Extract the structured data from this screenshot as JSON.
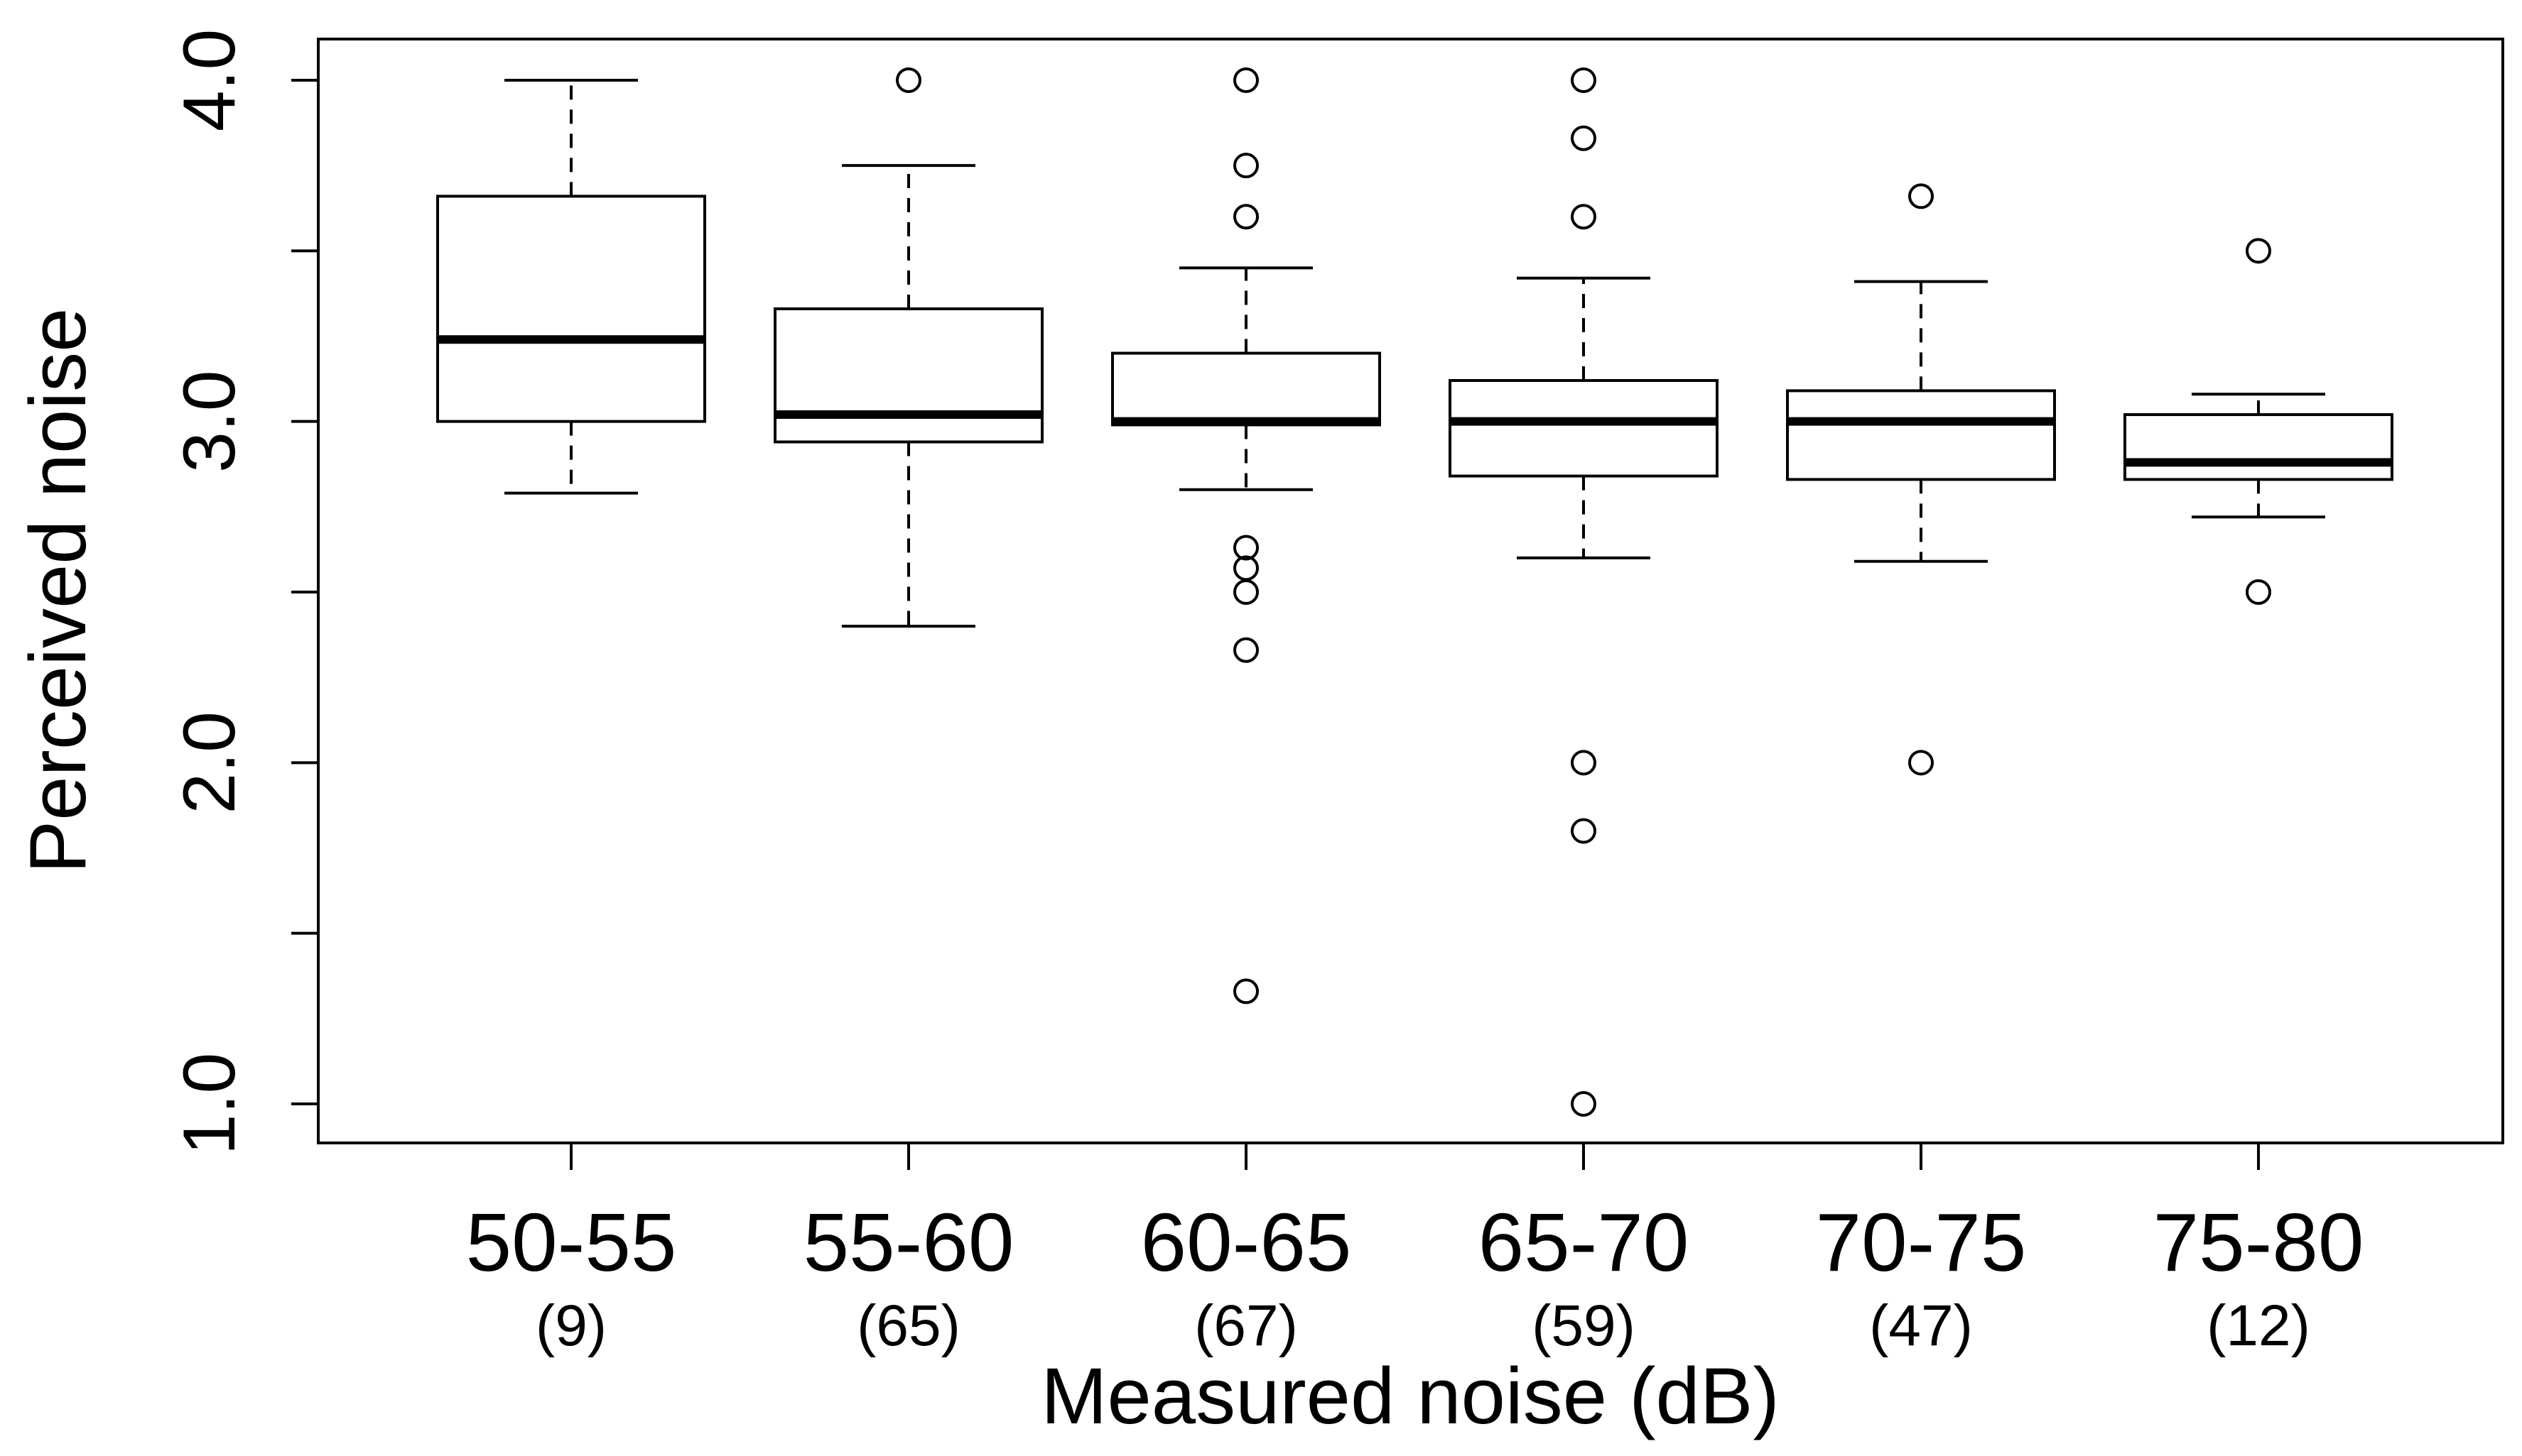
{
  "chart_data": {
    "type": "boxplot",
    "title": "",
    "xlabel": "Measured noise (dB)",
    "ylabel": "Perceived noise",
    "ylim": [
      0.88,
      4.15
    ],
    "yticks": [
      1.0,
      1.5,
      2.0,
      2.5,
      3.0,
      3.5,
      4.0
    ],
    "ytick_labels": [
      "1.0",
      "",
      "2.0",
      "",
      "3.0",
      "",
      "4.0"
    ],
    "categories": [
      "50-55",
      "55-60",
      "60-65",
      "65-70",
      "70-75",
      "75-80"
    ],
    "counts": [
      "(9)",
      "(65)",
      "(67)",
      "(59)",
      "(47)",
      "(12)"
    ],
    "boxes": [
      {
        "category": "50-55",
        "whisker_low": 2.79,
        "q1": 3.0,
        "median": 3.24,
        "q3": 3.66,
        "whisker_high": 4.0,
        "outliers": []
      },
      {
        "category": "55-60",
        "whisker_low": 2.4,
        "q1": 2.94,
        "median": 3.02,
        "q3": 3.33,
        "whisker_high": 3.75,
        "outliers": [
          4.0
        ]
      },
      {
        "category": "60-65",
        "whisker_low": 2.8,
        "q1": 2.99,
        "median": 3.0,
        "q3": 3.2,
        "whisker_high": 3.45,
        "outliers": [
          4.0,
          3.75,
          3.6,
          2.63,
          2.57,
          2.5,
          2.33,
          1.33
        ]
      },
      {
        "category": "65-70",
        "whisker_low": 2.6,
        "q1": 2.84,
        "median": 3.0,
        "q3": 3.12,
        "whisker_high": 3.42,
        "outliers": [
          4.0,
          3.83,
          3.6,
          2.0,
          1.8,
          1.0
        ]
      },
      {
        "category": "70-75",
        "whisker_low": 2.59,
        "q1": 2.83,
        "median": 3.0,
        "q3": 3.09,
        "whisker_high": 3.41,
        "outliers": [
          3.66,
          2.0
        ]
      },
      {
        "category": "75-80",
        "whisker_low": 2.72,
        "q1": 2.83,
        "median": 2.88,
        "q3": 3.02,
        "whisker_high": 3.08,
        "outliers": [
          3.5,
          2.5
        ]
      }
    ]
  }
}
